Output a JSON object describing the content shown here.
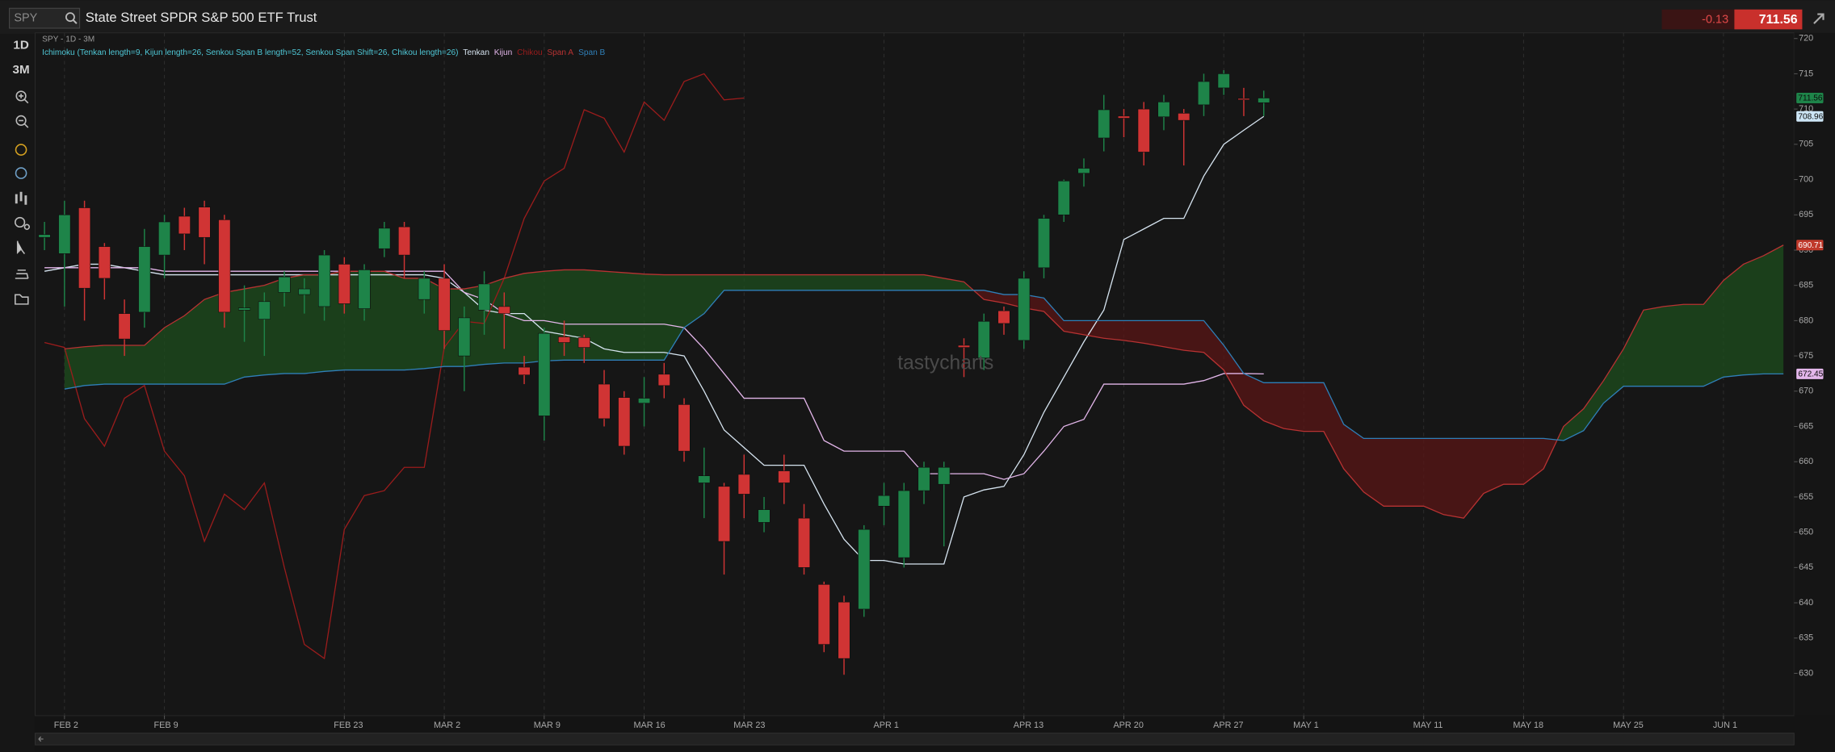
{
  "header": {
    "search": "SPY",
    "title": "State Street SPDR S&P 500 ETF Trust",
    "change": "-0.13",
    "price": "711.56"
  },
  "toolbar": {
    "buttons": [
      "1D",
      "3M"
    ]
  },
  "chart_data": {
    "type": "candlestick",
    "subtitle": "SPY - 1D - 3M",
    "indicator": "Ichimoku (Tenkan length=9, Kijun length=26, Senkou Span B length=52, Senkou Span Shift=26, Chikou length=26)",
    "watermark": "tastycharts",
    "xlim": [
      -0.47,
      87.53
    ],
    "ylim": [
      624,
      720.8
    ],
    "grid": "x",
    "xticks": [
      {
        "value": 1,
        "label": "FEB 2"
      },
      {
        "value": 6,
        "label": "FEB 9"
      },
      {
        "value": 15,
        "label": "FEB 23"
      },
      {
        "value": 20,
        "label": "MAR 2"
      },
      {
        "value": 25,
        "label": "MAR 9"
      },
      {
        "value": 30,
        "label": "MAR 16"
      },
      {
        "value": 35,
        "label": "MAR 23"
      },
      {
        "value": 42,
        "label": "APR 1"
      },
      {
        "value": 49,
        "label": "APR 13"
      },
      {
        "value": 54,
        "label": "APR 20"
      },
      {
        "value": 59,
        "label": "APR 27"
      },
      {
        "value": 63,
        "label": "MAY 1"
      },
      {
        "value": 69,
        "label": "MAY 11"
      },
      {
        "value": 74,
        "label": "MAY 18"
      },
      {
        "value": 79,
        "label": "MAY 25"
      },
      {
        "value": 84,
        "label": "JUN 1"
      }
    ],
    "yticks": [
      630,
      635,
      640,
      645,
      650,
      655,
      660,
      665,
      670,
      675,
      680,
      685,
      690,
      695,
      700,
      705,
      710,
      715,
      720
    ],
    "up_color": "#1e8449",
    "down_color": "#d03434",
    "candles": {
      "open": [
        691.8,
        689.5,
        696,
        690.5,
        681,
        681.2,
        689.3,
        694.8,
        696.1,
        694.3,
        681.5,
        680.2,
        684,
        683.7,
        682,
        688,
        681.7,
        690.2,
        693.3,
        683,
        686,
        675,
        681.5,
        682,
        673.4,
        666.5,
        677.7,
        677.6,
        671,
        669.1,
        668.3,
        672.4,
        668.1,
        657,
        656.5,
        658.2,
        651.4,
        658.7,
        652,
        642.6,
        640.1,
        639.1,
        653.7,
        646.4,
        655.9,
        656.8,
        676.5,
        674.7,
        681.4,
        677.2,
        687.5,
        695,
        700.9,
        705.9,
        709,
        710,
        708.9,
        709.4,
        710.6,
        713,
        711.5,
        710.9
      ],
      "high": [
        694,
        697,
        697,
        691,
        683,
        693,
        695,
        696,
        697,
        695,
        685,
        684,
        687,
        686,
        690,
        689,
        688,
        694,
        694,
        687,
        688,
        682,
        687,
        684,
        675,
        679,
        680,
        678,
        673,
        670,
        672,
        674,
        669,
        662,
        657,
        661,
        655,
        661,
        654,
        643,
        641,
        651,
        657,
        657,
        660,
        660,
        677.5,
        681,
        682,
        687,
        695,
        700,
        703,
        712,
        710,
        711,
        712,
        710,
        715,
        715.5,
        713,
        712.6
      ],
      "low": [
        690,
        682,
        680,
        683,
        675,
        679,
        686,
        690,
        688,
        679,
        677,
        675,
        682,
        681,
        680,
        681,
        680,
        689,
        686,
        681,
        676,
        670,
        678,
        676,
        671,
        663,
        675,
        674,
        665,
        661,
        665,
        669,
        660,
        652,
        644,
        652,
        650,
        654,
        644,
        633,
        629.8,
        638,
        651,
        645,
        654,
        648,
        672,
        673,
        678,
        676,
        686,
        694,
        699,
        704,
        706,
        702,
        707,
        702,
        709,
        712,
        709,
        709
      ],
      "close": [
        692.2,
        695,
        684.6,
        686,
        677.4,
        690.5,
        694,
        692.3,
        691.8,
        681.2,
        681.8,
        682.7,
        686.2,
        684.5,
        689.3,
        682.4,
        687.2,
        693.1,
        689.3,
        686,
        678.6,
        680.4,
        685.2,
        681,
        672.3,
        678.2,
        676.9,
        676.2,
        666.1,
        662.2,
        669,
        670.8,
        661.5,
        658,
        648.7,
        655.4,
        653.2,
        657,
        645,
        634.1,
        632.1,
        650.4,
        655.2,
        655.9,
        659.2,
        659.2,
        676.2,
        679.9,
        679.6,
        686,
        694.5,
        699.8,
        701.6,
        709.9,
        708.7,
        703.9,
        711,
        708.4,
        713.9,
        715,
        711.3,
        711.56
      ]
    },
    "series": [
      {
        "name": "Tenkan",
        "color": "#d6e4f0",
        "x": [
          0,
          1,
          2,
          3,
          4,
          5,
          6,
          7,
          8,
          9,
          10,
          11,
          12,
          13,
          14,
          15,
          16,
          17,
          18,
          19,
          20,
          21,
          22,
          23,
          24,
          25,
          26,
          27,
          28,
          29,
          30,
          31,
          32,
          33,
          34,
          35,
          36,
          37,
          38,
          39,
          40,
          41,
          42,
          43,
          44,
          45,
          46,
          47,
          48,
          49,
          50,
          51,
          52,
          53,
          54,
          55,
          56,
          57,
          58,
          59,
          60,
          61
        ],
        "values": [
          687,
          687.5,
          688,
          688,
          687.5,
          687,
          686.5,
          686.5,
          686.5,
          686.5,
          686.5,
          686.5,
          686.5,
          686.5,
          686.5,
          686.5,
          686.5,
          686.5,
          686.5,
          686.5,
          686,
          684,
          681.5,
          681,
          681,
          678.5,
          678,
          677.5,
          676,
          675.5,
          675.5,
          675.5,
          675,
          670,
          664.5,
          662,
          659.5,
          659.5,
          659.5,
          654,
          649,
          646,
          646,
          645.5,
          645.5,
          645.5,
          655,
          656,
          656.5,
          661,
          667,
          672,
          677,
          681.5,
          691.5,
          693,
          694.5,
          694.5,
          700.5,
          705,
          707,
          708.96
        ]
      },
      {
        "name": "Kijun",
        "color": "#e3b6ea",
        "x": [
          0,
          1,
          2,
          3,
          4,
          5,
          6,
          7,
          8,
          9,
          10,
          11,
          12,
          13,
          14,
          15,
          16,
          17,
          18,
          19,
          20,
          21,
          22,
          23,
          24,
          25,
          26,
          27,
          28,
          29,
          30,
          31,
          32,
          33,
          34,
          35,
          36,
          37,
          38,
          39,
          40,
          41,
          42,
          43,
          44,
          45,
          46,
          47,
          48,
          49,
          50,
          51,
          52,
          53,
          54,
          55,
          56,
          57,
          58,
          59,
          60,
          61
        ],
        "values": [
          687.5,
          687.5,
          687.5,
          687.5,
          687.5,
          687.5,
          687,
          687,
          687,
          687,
          687,
          687,
          687,
          687,
          687,
          687,
          687,
          687,
          687,
          687,
          687,
          684,
          683,
          681,
          680,
          680,
          679.5,
          679.5,
          679.5,
          679.5,
          679.5,
          679.5,
          679,
          676,
          672.5,
          669,
          669,
          669,
          669,
          663,
          661.5,
          661.5,
          661.5,
          661.5,
          658.3,
          658.3,
          658.3,
          658.3,
          657.5,
          658.3,
          661.5,
          665,
          666,
          671,
          671,
          671,
          671,
          671,
          671.5,
          672.5,
          672.5,
          672.45
        ]
      },
      {
        "name": "Chikou",
        "color": "#9b1c1c",
        "x": [
          0,
          1,
          2,
          3,
          4,
          5,
          6,
          7,
          8,
          9,
          10,
          11,
          12,
          13,
          14,
          15,
          16,
          17,
          18,
          19,
          20,
          21,
          22,
          23,
          24,
          25,
          26,
          27,
          28,
          29,
          30,
          31,
          32,
          33,
          34,
          35
        ],
        "values": [
          676.9,
          676.2,
          666.1,
          662.2,
          669,
          670.8,
          661.5,
          658,
          648.7,
          655.4,
          653.2,
          657,
          645,
          634.1,
          632.1,
          650.4,
          655.2,
          655.9,
          659.2,
          659.2,
          676.2,
          679.9,
          679.6,
          686,
          694.5,
          699.8,
          701.6,
          709.9,
          708.7,
          703.9,
          711,
          708.4,
          713.9,
          715,
          711.3,
          711.56
        ]
      },
      {
        "name": "Span A",
        "color": "#b83232",
        "x": [
          1,
          2,
          3,
          4,
          5,
          6,
          7,
          8,
          9,
          10,
          11,
          12,
          13,
          14,
          15,
          16,
          17,
          18,
          19,
          20,
          21,
          22,
          23,
          24,
          25,
          26,
          27,
          28,
          29,
          30,
          31,
          32,
          33,
          34,
          35,
          36,
          37,
          38,
          39,
          40,
          41,
          42,
          43,
          44,
          45,
          46,
          47,
          48,
          49,
          50,
          51,
          52,
          53,
          54,
          55,
          56,
          57,
          58,
          59,
          60,
          61,
          62,
          63,
          64,
          65,
          66,
          67,
          68,
          69,
          70,
          71,
          72,
          73,
          74,
          75,
          76,
          77,
          78,
          79,
          80,
          81,
          82,
          83,
          84,
          85,
          86,
          87
        ],
        "values": [
          676,
          676.3,
          676.5,
          676.5,
          676.5,
          679,
          680.7,
          683,
          684,
          684.5,
          685,
          686,
          686.5,
          686.5,
          687,
          687,
          687,
          686,
          686,
          684.5,
          684.5,
          685,
          686,
          686.7,
          687,
          687.2,
          687.2,
          687,
          686.8,
          686.6,
          686.5,
          686.5,
          686.5,
          686.5,
          686.5,
          686.5,
          686.5,
          686.5,
          686.5,
          686.5,
          686.5,
          686.5,
          686.5,
          686.5,
          686,
          685.5,
          683,
          682.5,
          681.8,
          681.3,
          678.5,
          678,
          677.5,
          677.2,
          676.8,
          676.3,
          675.8,
          675.5,
          673,
          668,
          665.8,
          664.7,
          664.3,
          664.3,
          659,
          655.7,
          653.7,
          653.7,
          653.7,
          652.5,
          652,
          655.5,
          656.8,
          656.8,
          659,
          665,
          667.5,
          671.5,
          676,
          681.5,
          682,
          682.3,
          682.3,
          685.7,
          688,
          689.2,
          690.71
        ]
      },
      {
        "name": "Span B",
        "color": "#2f7fb8",
        "x": [
          1,
          2,
          3,
          4,
          5,
          6,
          7,
          8,
          9,
          10,
          11,
          12,
          13,
          14,
          15,
          16,
          17,
          18,
          19,
          20,
          21,
          22,
          23,
          24,
          25,
          26,
          27,
          28,
          29,
          30,
          31,
          32,
          33,
          34,
          35,
          36,
          37,
          38,
          39,
          40,
          41,
          42,
          43,
          44,
          45,
          46,
          47,
          48,
          49,
          50,
          51,
          52,
          53,
          54,
          55,
          56,
          57,
          58,
          59,
          60,
          61,
          62,
          63,
          64,
          65,
          66,
          67,
          68,
          69,
          70,
          71,
          72,
          73,
          74,
          75,
          76,
          77,
          78,
          79,
          80,
          81,
          82,
          83,
          84,
          85,
          86,
          87
        ],
        "values": [
          670.3,
          670.8,
          671,
          671,
          671,
          671,
          671,
          671,
          671,
          672,
          672.3,
          672.5,
          672.5,
          672.8,
          673,
          673,
          673,
          673,
          673.2,
          673.5,
          673.5,
          673.8,
          674,
          674,
          674.3,
          674.4,
          674.4,
          674.4,
          674.4,
          674.4,
          674.4,
          679,
          681,
          684.3,
          684.3,
          684.3,
          684.3,
          684.3,
          684.3,
          684.3,
          684.3,
          684.3,
          684.3,
          684.3,
          684.3,
          684.3,
          684.3,
          683.7,
          683.7,
          683.2,
          680,
          680,
          680,
          680,
          680,
          680,
          680,
          680,
          676.5,
          672.5,
          671.2,
          671.2,
          671.2,
          671.2,
          665.3,
          663.3,
          663.3,
          663.3,
          663.3,
          663.3,
          663.3,
          663.3,
          663.3,
          663.3,
          663.3,
          663,
          664.4,
          668.3,
          670.7,
          670.7,
          670.7,
          670.7,
          670.7,
          672,
          672.3,
          672.45,
          672.45
        ]
      }
    ],
    "cloud_up_color": "#1d4d1d",
    "cloud_down_color": "#5a1616",
    "price_labels": [
      {
        "value": 711.56,
        "label": "711.56",
        "color": "#1e8449",
        "text_color": "#0b0b0b"
      },
      {
        "value": 708.96,
        "label": "708.96",
        "color": "#cde6f6",
        "text_color": "#0b0b0b"
      },
      {
        "value": 690.71,
        "label": "690.71",
        "color": "#c0392b",
        "text_color": "#ffffff"
      },
      {
        "value": 672.45,
        "label": "672.45",
        "color": "#e3b6ea",
        "text_color": "#0b0b0b"
      }
    ]
  }
}
